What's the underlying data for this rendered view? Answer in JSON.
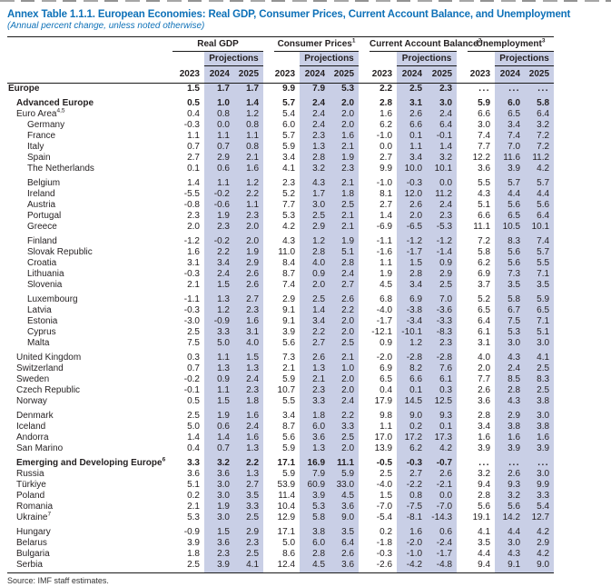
{
  "page": {
    "title": "Annex Table 1.1.1. European Economies: Real GDP, Consumer Prices, Current Account Balance, and Unemployment",
    "subtitle": "(Annual percent change, unless noted otherwise)",
    "source": "Source: IMF staff estimates."
  },
  "colors": {
    "title_blue": "#0e71b8",
    "projection_shade": "#c9cfe6",
    "rule_black": "#1a1a1a"
  },
  "table": {
    "projections_label": "Projections",
    "years": [
      "2023",
      "2024",
      "2025"
    ],
    "groups": [
      {
        "label": "Real GDP",
        "sup": ""
      },
      {
        "label": "Consumer Prices",
        "sup": "1"
      },
      {
        "label": "Current Account Balance",
        "sup": "2"
      },
      {
        "label": "Unemployment",
        "sup": "3"
      }
    ],
    "rows": [
      {
        "label": "Europe",
        "sup": "",
        "bold": true,
        "indent": 0,
        "gap": false,
        "v": [
          "1.5",
          "1.7",
          "1.7",
          "9.9",
          "7.9",
          "5.3",
          "2.2",
          "2.5",
          "2.3",
          "...",
          "...",
          "..."
        ]
      },
      {
        "label": "Advanced Europe",
        "sup": "",
        "bold": true,
        "indent": 1,
        "gap": true,
        "v": [
          "0.5",
          "1.0",
          "1.4",
          "5.7",
          "2.4",
          "2.0",
          "2.8",
          "3.1",
          "3.0",
          "5.9",
          "6.0",
          "5.8"
        ]
      },
      {
        "label": "Euro Area",
        "sup": "4,5",
        "bold": false,
        "indent": 1,
        "gap": false,
        "v": [
          "0.4",
          "0.8",
          "1.2",
          "5.4",
          "2.4",
          "2.0",
          "1.6",
          "2.6",
          "2.4",
          "6.6",
          "6.5",
          "6.4"
        ]
      },
      {
        "label": "Germany",
        "sup": "",
        "bold": false,
        "indent": 2,
        "gap": false,
        "v": [
          "-0.3",
          "0.0",
          "0.8",
          "6.0",
          "2.4",
          "2.0",
          "6.2",
          "6.6",
          "6.4",
          "3.0",
          "3.4",
          "3.2"
        ]
      },
      {
        "label": "France",
        "sup": "",
        "bold": false,
        "indent": 2,
        "gap": false,
        "v": [
          "1.1",
          "1.1",
          "1.1",
          "5.7",
          "2.3",
          "1.6",
          "-1.0",
          "0.1",
          "-0.1",
          "7.4",
          "7.4",
          "7.2"
        ]
      },
      {
        "label": "Italy",
        "sup": "",
        "bold": false,
        "indent": 2,
        "gap": false,
        "v": [
          "0.7",
          "0.7",
          "0.8",
          "5.9",
          "1.3",
          "2.1",
          "0.0",
          "1.1",
          "1.4",
          "7.7",
          "7.0",
          "7.2"
        ]
      },
      {
        "label": "Spain",
        "sup": "",
        "bold": false,
        "indent": 2,
        "gap": false,
        "v": [
          "2.7",
          "2.9",
          "2.1",
          "3.4",
          "2.8",
          "1.9",
          "2.7",
          "3.4",
          "3.2",
          "12.2",
          "11.6",
          "11.2"
        ]
      },
      {
        "label": "The Netherlands",
        "sup": "",
        "bold": false,
        "indent": 2,
        "gap": false,
        "v": [
          "0.1",
          "0.6",
          "1.6",
          "4.1",
          "3.2",
          "2.3",
          "9.9",
          "10.0",
          "10.1",
          "3.6",
          "3.9",
          "4.2"
        ]
      },
      {
        "label": "Belgium",
        "sup": "",
        "bold": false,
        "indent": 2,
        "gap": true,
        "v": [
          "1.4",
          "1.1",
          "1.2",
          "2.3",
          "4.3",
          "2.1",
          "-1.0",
          "-0.3",
          "0.0",
          "5.5",
          "5.7",
          "5.7"
        ]
      },
      {
        "label": "Ireland",
        "sup": "",
        "bold": false,
        "indent": 2,
        "gap": false,
        "v": [
          "-5.5",
          "-0.2",
          "2.2",
          "5.2",
          "1.7",
          "1.8",
          "8.1",
          "12.0",
          "11.2",
          "4.3",
          "4.4",
          "4.4"
        ]
      },
      {
        "label": "Austria",
        "sup": "",
        "bold": false,
        "indent": 2,
        "gap": false,
        "v": [
          "-0.8",
          "-0.6",
          "1.1",
          "7.7",
          "3.0",
          "2.5",
          "2.7",
          "2.6",
          "2.4",
          "5.1",
          "5.6",
          "5.6"
        ]
      },
      {
        "label": "Portugal",
        "sup": "",
        "bold": false,
        "indent": 2,
        "gap": false,
        "v": [
          "2.3",
          "1.9",
          "2.3",
          "5.3",
          "2.5",
          "2.1",
          "1.4",
          "2.0",
          "2.3",
          "6.6",
          "6.5",
          "6.4"
        ]
      },
      {
        "label": "Greece",
        "sup": "",
        "bold": false,
        "indent": 2,
        "gap": false,
        "v": [
          "2.0",
          "2.3",
          "2.0",
          "4.2",
          "2.9",
          "2.1",
          "-6.9",
          "-6.5",
          "-5.3",
          "11.1",
          "10.5",
          "10.1"
        ]
      },
      {
        "label": "Finland",
        "sup": "",
        "bold": false,
        "indent": 2,
        "gap": true,
        "v": [
          "-1.2",
          "-0.2",
          "2.0",
          "4.3",
          "1.2",
          "1.9",
          "-1.1",
          "-1.2",
          "-1.2",
          "7.2",
          "8.3",
          "7.4"
        ]
      },
      {
        "label": "Slovak Republic",
        "sup": "",
        "bold": false,
        "indent": 2,
        "gap": false,
        "v": [
          "1.6",
          "2.2",
          "1.9",
          "11.0",
          "2.8",
          "5.1",
          "-1.6",
          "-1.7",
          "-1.4",
          "5.8",
          "5.6",
          "5.7"
        ]
      },
      {
        "label": "Croatia",
        "sup": "",
        "bold": false,
        "indent": 2,
        "gap": false,
        "v": [
          "3.1",
          "3.4",
          "2.9",
          "8.4",
          "4.0",
          "2.8",
          "1.1",
          "1.5",
          "0.9",
          "6.2",
          "5.6",
          "5.5"
        ]
      },
      {
        "label": "Lithuania",
        "sup": "",
        "bold": false,
        "indent": 2,
        "gap": false,
        "v": [
          "-0.3",
          "2.4",
          "2.6",
          "8.7",
          "0.9",
          "2.4",
          "1.9",
          "2.8",
          "2.9",
          "6.9",
          "7.3",
          "7.1"
        ]
      },
      {
        "label": "Slovenia",
        "sup": "",
        "bold": false,
        "indent": 2,
        "gap": false,
        "v": [
          "2.1",
          "1.5",
          "2.6",
          "7.4",
          "2.0",
          "2.7",
          "4.5",
          "3.4",
          "2.5",
          "3.7",
          "3.5",
          "3.5"
        ]
      },
      {
        "label": "Luxembourg",
        "sup": "",
        "bold": false,
        "indent": 2,
        "gap": true,
        "v": [
          "-1.1",
          "1.3",
          "2.7",
          "2.9",
          "2.5",
          "2.6",
          "6.8",
          "6.9",
          "7.0",
          "5.2",
          "5.8",
          "5.9"
        ]
      },
      {
        "label": "Latvia",
        "sup": "",
        "bold": false,
        "indent": 2,
        "gap": false,
        "v": [
          "-0.3",
          "1.2",
          "2.3",
          "9.1",
          "1.4",
          "2.2",
          "-4.0",
          "-3.8",
          "-3.6",
          "6.5",
          "6.7",
          "6.5"
        ]
      },
      {
        "label": "Estonia",
        "sup": "",
        "bold": false,
        "indent": 2,
        "gap": false,
        "v": [
          "-3.0",
          "-0.9",
          "1.6",
          "9.1",
          "3.4",
          "2.0",
          "-1.7",
          "-3.4",
          "-3.3",
          "6.4",
          "7.5",
          "7.1"
        ]
      },
      {
        "label": "Cyprus",
        "sup": "",
        "bold": false,
        "indent": 2,
        "gap": false,
        "v": [
          "2.5",
          "3.3",
          "3.1",
          "3.9",
          "2.2",
          "2.0",
          "-12.1",
          "-10.1",
          "-8.3",
          "6.1",
          "5.3",
          "5.1"
        ]
      },
      {
        "label": "Malta",
        "sup": "",
        "bold": false,
        "indent": 2,
        "gap": false,
        "v": [
          "7.5",
          "5.0",
          "4.0",
          "5.6",
          "2.7",
          "2.5",
          "0.9",
          "1.2",
          "2.3",
          "3.1",
          "3.0",
          "3.0"
        ]
      },
      {
        "label": "United Kingdom",
        "sup": "",
        "bold": false,
        "indent": 1,
        "gap": true,
        "v": [
          "0.3",
          "1.1",
          "1.5",
          "7.3",
          "2.6",
          "2.1",
          "-2.0",
          "-2.8",
          "-2.8",
          "4.0",
          "4.3",
          "4.1"
        ]
      },
      {
        "label": "Switzerland",
        "sup": "",
        "bold": false,
        "indent": 1,
        "gap": false,
        "v": [
          "0.7",
          "1.3",
          "1.3",
          "2.1",
          "1.3",
          "1.0",
          "6.9",
          "8.2",
          "7.6",
          "2.0",
          "2.4",
          "2.5"
        ]
      },
      {
        "label": "Sweden",
        "sup": "",
        "bold": false,
        "indent": 1,
        "gap": false,
        "v": [
          "-0.2",
          "0.9",
          "2.4",
          "5.9",
          "2.1",
          "2.0",
          "6.5",
          "6.6",
          "6.1",
          "7.7",
          "8.5",
          "8.3"
        ]
      },
      {
        "label": "Czech Republic",
        "sup": "",
        "bold": false,
        "indent": 1,
        "gap": false,
        "v": [
          "-0.1",
          "1.1",
          "2.3",
          "10.7",
          "2.3",
          "2.0",
          "0.4",
          "0.1",
          "0.3",
          "2.6",
          "2.8",
          "2.5"
        ]
      },
      {
        "label": "Norway",
        "sup": "",
        "bold": false,
        "indent": 1,
        "gap": false,
        "v": [
          "0.5",
          "1.5",
          "1.8",
          "5.5",
          "3.3",
          "2.4",
          "17.9",
          "14.5",
          "12.5",
          "3.6",
          "4.3",
          "3.8"
        ]
      },
      {
        "label": "Denmark",
        "sup": "",
        "bold": false,
        "indent": 1,
        "gap": true,
        "v": [
          "2.5",
          "1.9",
          "1.6",
          "3.4",
          "1.8",
          "2.2",
          "9.8",
          "9.0",
          "9.3",
          "2.8",
          "2.9",
          "3.0"
        ]
      },
      {
        "label": "Iceland",
        "sup": "",
        "bold": false,
        "indent": 1,
        "gap": false,
        "v": [
          "5.0",
          "0.6",
          "2.4",
          "8.7",
          "6.0",
          "3.3",
          "1.1",
          "0.2",
          "0.1",
          "3.4",
          "3.8",
          "3.8"
        ]
      },
      {
        "label": "Andorra",
        "sup": "",
        "bold": false,
        "indent": 1,
        "gap": false,
        "v": [
          "1.4",
          "1.4",
          "1.6",
          "5.6",
          "3.6",
          "2.5",
          "17.0",
          "17.2",
          "17.3",
          "1.6",
          "1.6",
          "1.6"
        ]
      },
      {
        "label": "San Marino",
        "sup": "",
        "bold": false,
        "indent": 1,
        "gap": false,
        "v": [
          "0.4",
          "0.7",
          "1.3",
          "5.9",
          "1.3",
          "2.0",
          "13.9",
          "6.2",
          "4.2",
          "3.9",
          "3.9",
          "3.9"
        ]
      },
      {
        "label": "Emerging and Developing Europe",
        "sup": "6",
        "bold": true,
        "indent": 1,
        "gap": true,
        "v": [
          "3.3",
          "3.2",
          "2.2",
          "17.1",
          "16.9",
          "11.1",
          "-0.5",
          "-0.3",
          "-0.7",
          "...",
          "...",
          "..."
        ]
      },
      {
        "label": "Russia",
        "sup": "",
        "bold": false,
        "indent": 1,
        "gap": false,
        "v": [
          "3.6",
          "3.6",
          "1.3",
          "5.9",
          "7.9",
          "5.9",
          "2.5",
          "2.7",
          "2.6",
          "3.2",
          "2.6",
          "3.0"
        ]
      },
      {
        "label": "Türkiye",
        "sup": "",
        "bold": false,
        "indent": 1,
        "gap": false,
        "v": [
          "5.1",
          "3.0",
          "2.7",
          "53.9",
          "60.9",
          "33.0",
          "-4.0",
          "-2.2",
          "-2.1",
          "9.4",
          "9.3",
          "9.9"
        ]
      },
      {
        "label": "Poland",
        "sup": "",
        "bold": false,
        "indent": 1,
        "gap": false,
        "v": [
          "0.2",
          "3.0",
          "3.5",
          "11.4",
          "3.9",
          "4.5",
          "1.5",
          "0.8",
          "0.0",
          "2.8",
          "3.2",
          "3.3"
        ]
      },
      {
        "label": "Romania",
        "sup": "",
        "bold": false,
        "indent": 1,
        "gap": false,
        "v": [
          "2.1",
          "1.9",
          "3.3",
          "10.4",
          "5.3",
          "3.6",
          "-7.0",
          "-7.5",
          "-7.0",
          "5.6",
          "5.6",
          "5.4"
        ]
      },
      {
        "label": "Ukraine",
        "sup": "7",
        "bold": false,
        "indent": 1,
        "gap": false,
        "v": [
          "5.3",
          "3.0",
          "2.5",
          "12.9",
          "5.8",
          "9.0",
          "-5.4",
          "-8.1",
          "-14.3",
          "19.1",
          "14.2",
          "12.7"
        ]
      },
      {
        "label": "Hungary",
        "sup": "",
        "bold": false,
        "indent": 1,
        "gap": true,
        "v": [
          "-0.9",
          "1.5",
          "2.9",
          "17.1",
          "3.8",
          "3.5",
          "0.2",
          "1.6",
          "0.6",
          "4.1",
          "4.4",
          "4.2"
        ]
      },
      {
        "label": "Belarus",
        "sup": "",
        "bold": false,
        "indent": 1,
        "gap": false,
        "v": [
          "3.9",
          "3.6",
          "2.3",
          "5.0",
          "6.0",
          "6.4",
          "-1.8",
          "-2.0",
          "-2.4",
          "3.5",
          "3.0",
          "2.9"
        ]
      },
      {
        "label": "Bulgaria",
        "sup": "",
        "bold": false,
        "indent": 1,
        "gap": false,
        "v": [
          "1.8",
          "2.3",
          "2.5",
          "8.6",
          "2.8",
          "2.6",
          "-0.3",
          "-1.0",
          "-1.7",
          "4.4",
          "4.3",
          "4.2"
        ]
      },
      {
        "label": "Serbia",
        "sup": "",
        "bold": false,
        "indent": 1,
        "gap": false,
        "v": [
          "2.5",
          "3.9",
          "4.1",
          "12.4",
          "4.5",
          "3.6",
          "-2.6",
          "-4.2",
          "-4.8",
          "9.4",
          "9.1",
          "9.0"
        ]
      }
    ]
  }
}
